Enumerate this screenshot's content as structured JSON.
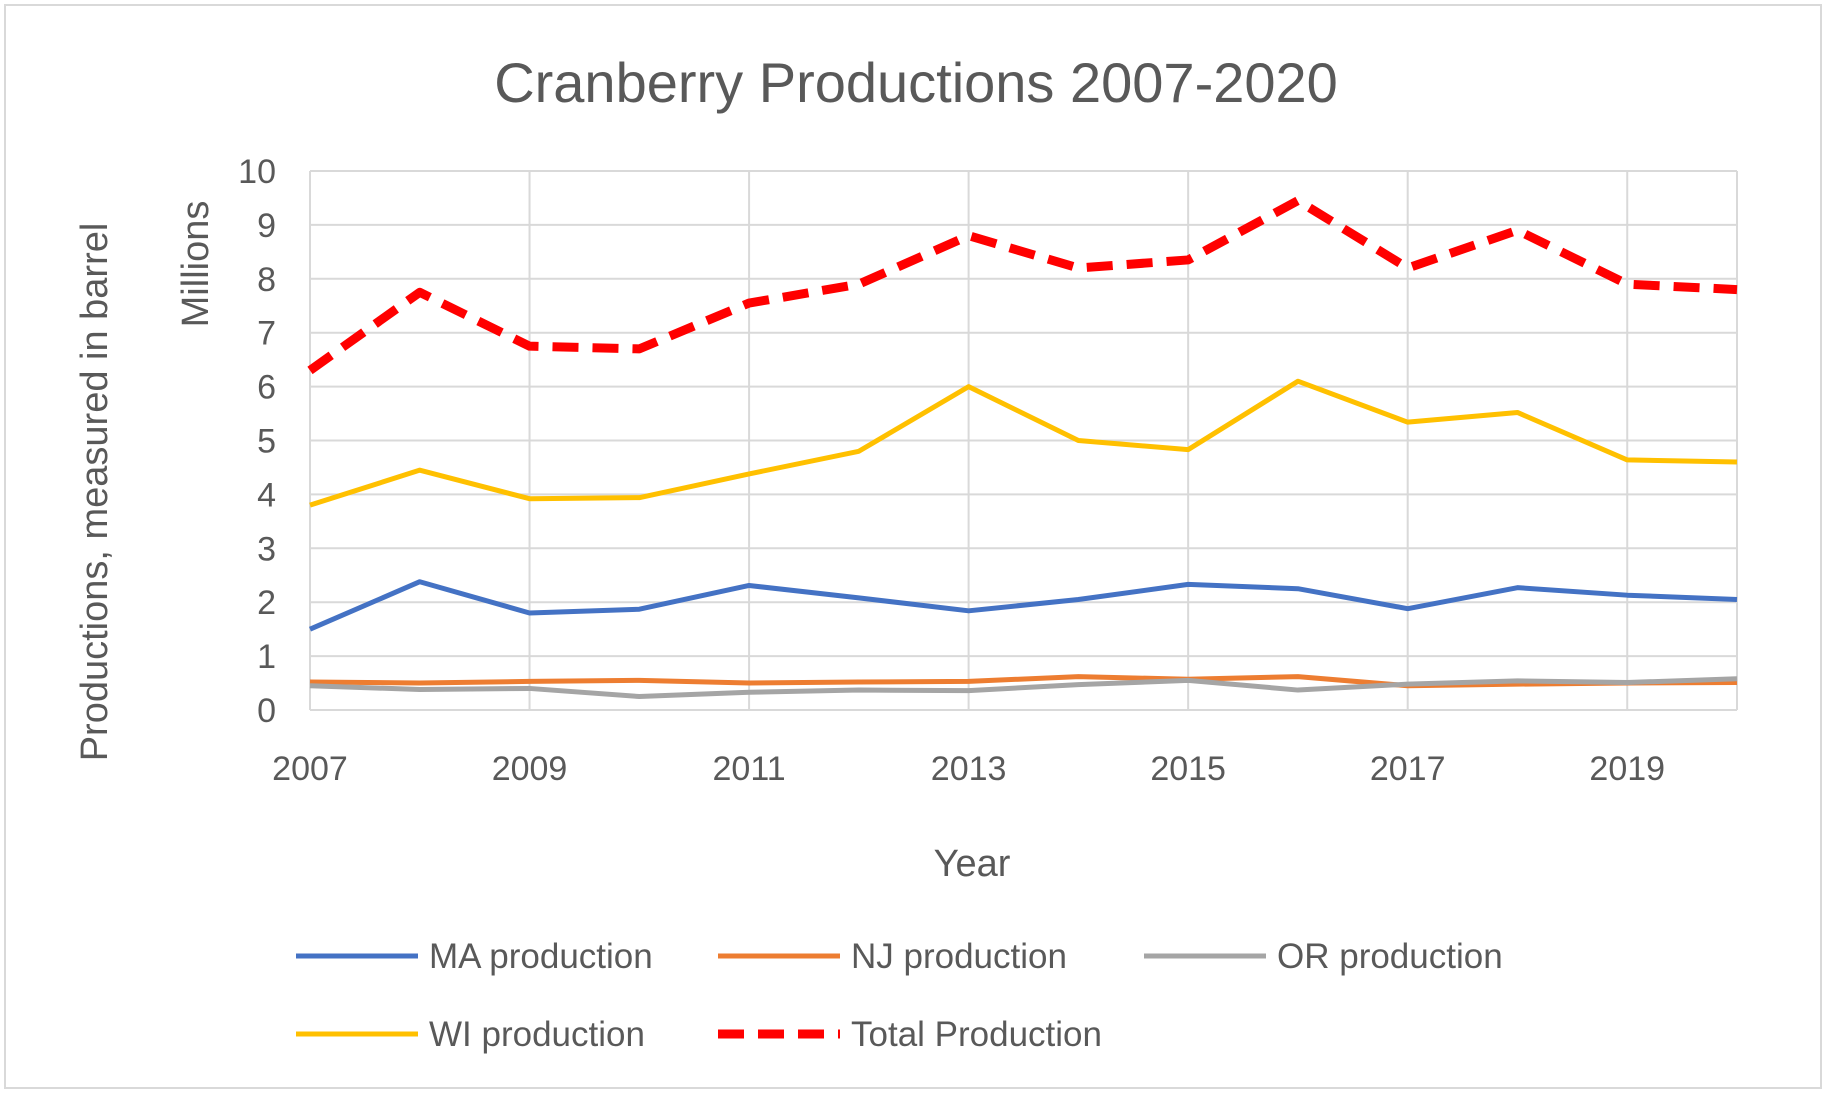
{
  "chart_data": {
    "type": "line",
    "title": "Cranberry Productions 2007-2020",
    "xlabel": "Year",
    "ylabel": "Productions, measured in barrel",
    "y_units_label": "Millions",
    "x": [
      2007,
      2008,
      2009,
      2010,
      2011,
      2012,
      2013,
      2014,
      2015,
      2016,
      2017,
      2018,
      2019,
      2020
    ],
    "x_ticks": [
      "2007",
      "2009",
      "2011",
      "2013",
      "2015",
      "2017",
      "2019"
    ],
    "y_ticks": [
      "0",
      "1",
      "2",
      "3",
      "4",
      "5",
      "6",
      "7",
      "8",
      "9",
      "10"
    ],
    "xlim": [
      2007,
      2020
    ],
    "ylim": [
      0,
      10
    ],
    "grid": true,
    "legend_position": "bottom",
    "series": [
      {
        "name": "MA production",
        "color": "#4472c4",
        "dash": false,
        "values": [
          1.5,
          2.38,
          1.8,
          1.87,
          2.31,
          2.08,
          1.84,
          2.05,
          2.33,
          2.25,
          1.88,
          2.27,
          2.13,
          2.05
        ]
      },
      {
        "name": "NJ production",
        "color": "#ed7d31",
        "dash": false,
        "values": [
          0.52,
          0.5,
          0.53,
          0.55,
          0.5,
          0.52,
          0.53,
          0.62,
          0.57,
          0.62,
          0.45,
          0.48,
          0.5,
          0.51
        ]
      },
      {
        "name": "OR production",
        "color": "#a5a5a5",
        "dash": false,
        "values": [
          0.45,
          0.38,
          0.4,
          0.25,
          0.33,
          0.37,
          0.36,
          0.47,
          0.55,
          0.37,
          0.48,
          0.54,
          0.51,
          0.58
        ]
      },
      {
        "name": "WI production",
        "color": "#ffc000",
        "dash": false,
        "values": [
          3.8,
          4.45,
          3.92,
          3.94,
          4.38,
          4.8,
          6.0,
          5.0,
          4.83,
          6.1,
          5.34,
          5.52,
          4.64,
          4.6
        ]
      },
      {
        "name": "Total Production",
        "color": "#ff0000",
        "dash": true,
        "values": [
          6.3,
          7.75,
          6.75,
          6.7,
          7.55,
          7.9,
          8.8,
          8.2,
          8.35,
          9.45,
          8.2,
          8.9,
          7.9,
          7.8
        ]
      }
    ]
  }
}
